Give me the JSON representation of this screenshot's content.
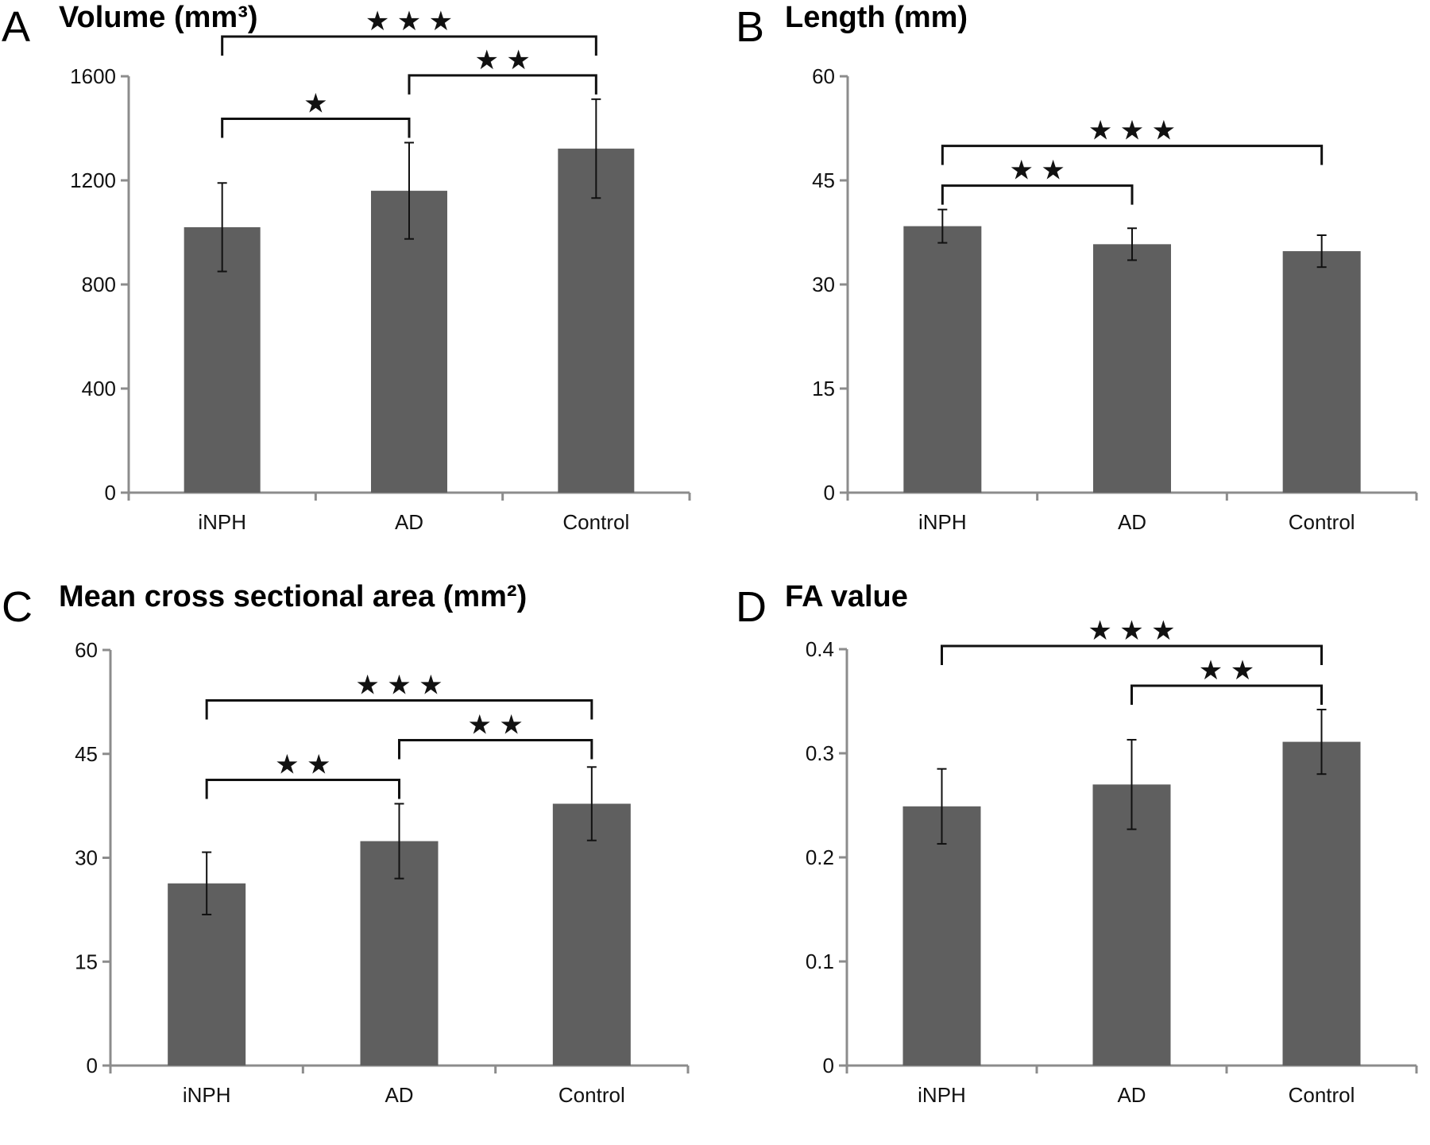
{
  "chart_data": [
    {
      "type": "bar",
      "panel": "A",
      "title": "Volume (mm³)",
      "categories": [
        "iNPH",
        "AD",
        "Control"
      ],
      "values": [
        1020,
        1160,
        1322
      ],
      "errors": [
        170,
        185,
        190
      ],
      "ylim": [
        0,
        1600
      ],
      "yticks": [
        0,
        400,
        800,
        1200,
        1600
      ],
      "bar_color": "#5f5f5f",
      "significance": [
        {
          "from": "iNPH",
          "to": "AD",
          "label": "★"
        },
        {
          "from": "AD",
          "to": "Control",
          "label": "★ ★"
        },
        {
          "from": "iNPH",
          "to": "Control",
          "label": "★ ★ ★"
        }
      ]
    },
    {
      "type": "bar",
      "panel": "B",
      "title": "Length (mm)",
      "categories": [
        "iNPH",
        "AD",
        "Control"
      ],
      "values": [
        38.4,
        35.8,
        34.8
      ],
      "errors": [
        2.4,
        2.3,
        2.3
      ],
      "ylim": [
        0,
        60
      ],
      "yticks": [
        0,
        15,
        30,
        45,
        60
      ],
      "bar_color": "#5f5f5f",
      "significance": [
        {
          "from": "iNPH",
          "to": "AD",
          "label": "★ ★"
        },
        {
          "from": "iNPH",
          "to": "Control",
          "label": "★ ★ ★"
        }
      ]
    },
    {
      "type": "bar",
      "panel": "C",
      "title": "Mean cross sectional area (mm²)",
      "categories": [
        "iNPH",
        "AD",
        "Control"
      ],
      "values": [
        26.3,
        32.4,
        37.8
      ],
      "errors": [
        4.5,
        5.4,
        5.3
      ],
      "ylim": [
        0,
        60
      ],
      "yticks": [
        0,
        15,
        30,
        45,
        60
      ],
      "bar_color": "#5f5f5f",
      "significance": [
        {
          "from": "iNPH",
          "to": "AD",
          "label": "★ ★"
        },
        {
          "from": "AD",
          "to": "Control",
          "label": "★ ★"
        },
        {
          "from": "iNPH",
          "to": "Control",
          "label": "★ ★ ★"
        }
      ]
    },
    {
      "type": "bar",
      "panel": "D",
      "title": "FA value",
      "categories": [
        "iNPH",
        "AD",
        "Control"
      ],
      "values": [
        0.249,
        0.27,
        0.311
      ],
      "errors": [
        0.036,
        0.043,
        0.031
      ],
      "ylim": [
        0,
        0.4
      ],
      "yticks": [
        0,
        0.1,
        0.2,
        0.3,
        0.4
      ],
      "ytick_labels": [
        "0",
        "0.1",
        "0.2",
        "0.3",
        "0.4"
      ],
      "bar_color": "#5f5f5f",
      "significance": [
        {
          "from": "AD",
          "to": "Control",
          "label": "★ ★"
        },
        {
          "from": "iNPH",
          "to": "Control",
          "label": "★ ★ ★"
        }
      ]
    }
  ]
}
